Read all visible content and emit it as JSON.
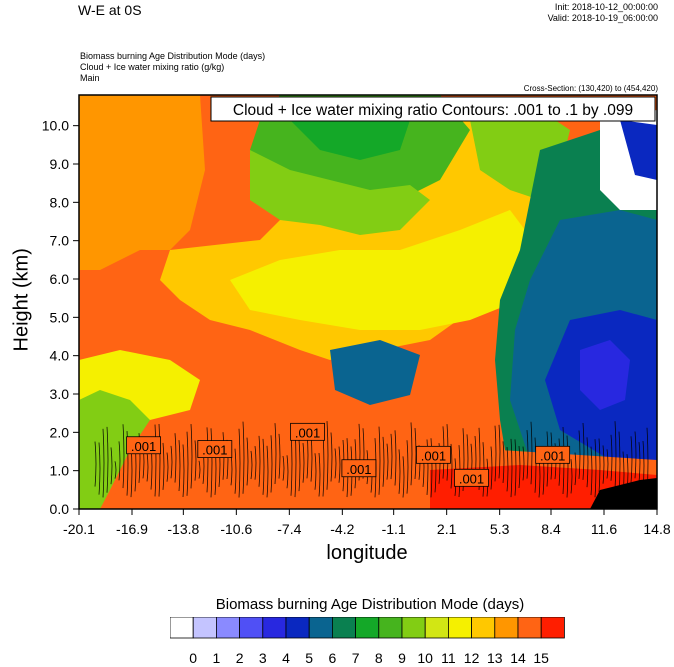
{
  "header": {
    "title": "W-E at 0S",
    "init": "Init: 2018-10-12_00:00:00",
    "valid": "Valid: 2018-10-19_06:00:00",
    "notes": [
      "Biomass burning Age Distribution Mode   (days)",
      "Cloud + Ice water mixing ratio   (g/kg)",
      "Main"
    ],
    "cross_section": "Cross-Section: (130,420) to (454,420)"
  },
  "chart_data": {
    "type": "heatmap",
    "xlabel": "longitude",
    "ylabel": "Height (km)",
    "x_ticks": [
      "-20.1",
      "-16.9",
      "-13.8",
      "-10.6",
      "-7.4",
      "-4.2",
      "-1.1",
      "2.1",
      "5.3",
      "8.4",
      "11.6",
      "14.8"
    ],
    "y_ticks": [
      "0.0",
      "1.0",
      "2.0",
      "3.0",
      "4.0",
      "5.0",
      "6.0",
      "7.0",
      "8.0",
      "9.0",
      "10.0"
    ],
    "xlim": [
      -20.1,
      14.8
    ],
    "ylim": [
      0,
      10.8
    ],
    "contour_label": "Cloud + Ice water mixing ratio Contours: .001 to .1 by .099",
    "contour_tags": [
      {
        "text": ".001",
        "x": -16.2,
        "y": 1.65
      },
      {
        "text": ".001",
        "x": -11.9,
        "y": 1.55
      },
      {
        "text": ".001",
        "x": -6.3,
        "y": 2.0
      },
      {
        "text": ".001",
        "x": -3.2,
        "y": 1.05
      },
      {
        "text": ".001",
        "x": 1.3,
        "y": 1.4
      },
      {
        "text": ".001",
        "x": 3.6,
        "y": 0.8
      },
      {
        "text": ".001",
        "x": 8.5,
        "y": 1.4
      }
    ],
    "colorbar": {
      "title": "Biomass burning Age Distribution Mode  (days)",
      "labels": [
        "0",
        "1",
        "2",
        "3",
        "4",
        "5",
        "6",
        "7",
        "8",
        "9",
        "10",
        "11",
        "12",
        "13",
        "14",
        "15"
      ],
      "colors": [
        "#ffffff",
        "#c4c4ff",
        "#8a8aff",
        "#5050f5",
        "#2828e0",
        "#0a28c0",
        "#0a6490",
        "#0a8050",
        "#14a828",
        "#46b41e",
        "#82cd14",
        "#d2e614",
        "#f5f000",
        "#ffc800",
        "#ff9600",
        "#ff6414",
        "#ff1e00"
      ]
    }
  }
}
